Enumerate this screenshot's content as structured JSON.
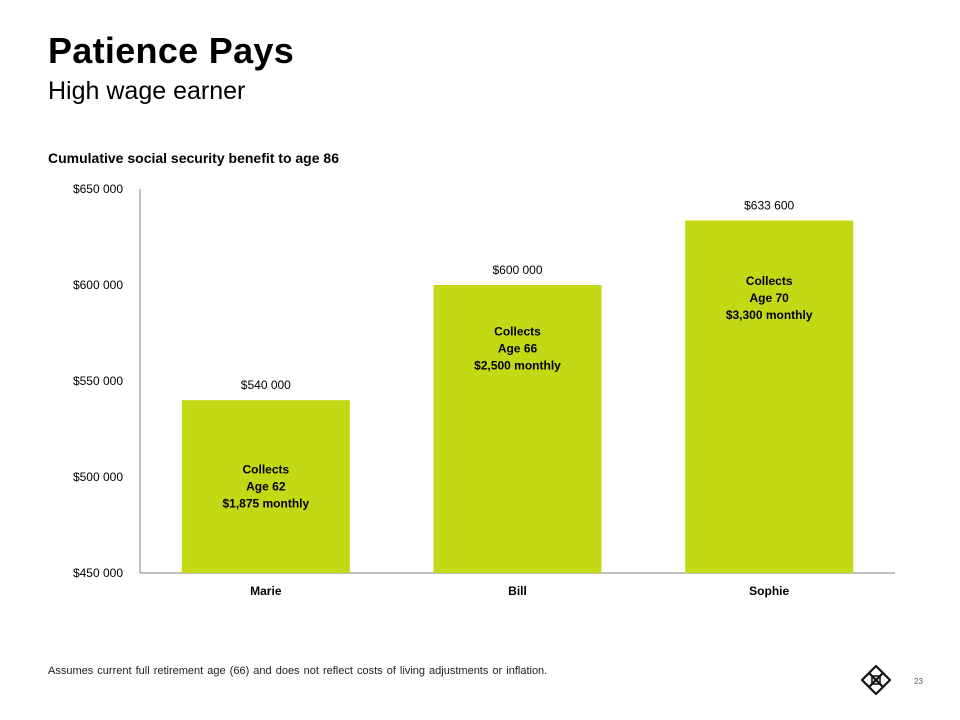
{
  "slide": {
    "title": "Patience Pays",
    "subtitle": "High wage earner",
    "footnote": "Assumes current full retirement age (66) and does not reflect costs of living adjustments or inflation.",
    "page_number": "23"
  },
  "colors": {
    "bar": "#c4d916",
    "axis": "#7f7f7f",
    "text": "#000000"
  },
  "logo": {
    "icon": "company-logo-icon"
  },
  "chart_data": {
    "type": "bar",
    "title": "Cumulative social security benefit to age 86",
    "categories": [
      "Marie",
      "Bill",
      "Sophie"
    ],
    "values": [
      540000,
      600000,
      633600
    ],
    "value_labels": [
      "$540 000",
      "$600 000",
      "$633 600"
    ],
    "bar_annotations": [
      [
        "Collects",
        "Age 62",
        "$1,875 monthly"
      ],
      [
        "Collects",
        "Age 66",
        "$2,500 monthly"
      ],
      [
        "Collects",
        "Age 70",
        "$3,300 monthly"
      ]
    ],
    "ylim": [
      450000,
      650000
    ],
    "yticks": [
      450000,
      500000,
      550000,
      600000,
      650000
    ],
    "ytick_labels": [
      "$450 000",
      "$500 000",
      "$550 000",
      "$600 000",
      "$650 000"
    ],
    "xlabel": "",
    "ylabel": "",
    "grid": false,
    "legend": "none"
  }
}
